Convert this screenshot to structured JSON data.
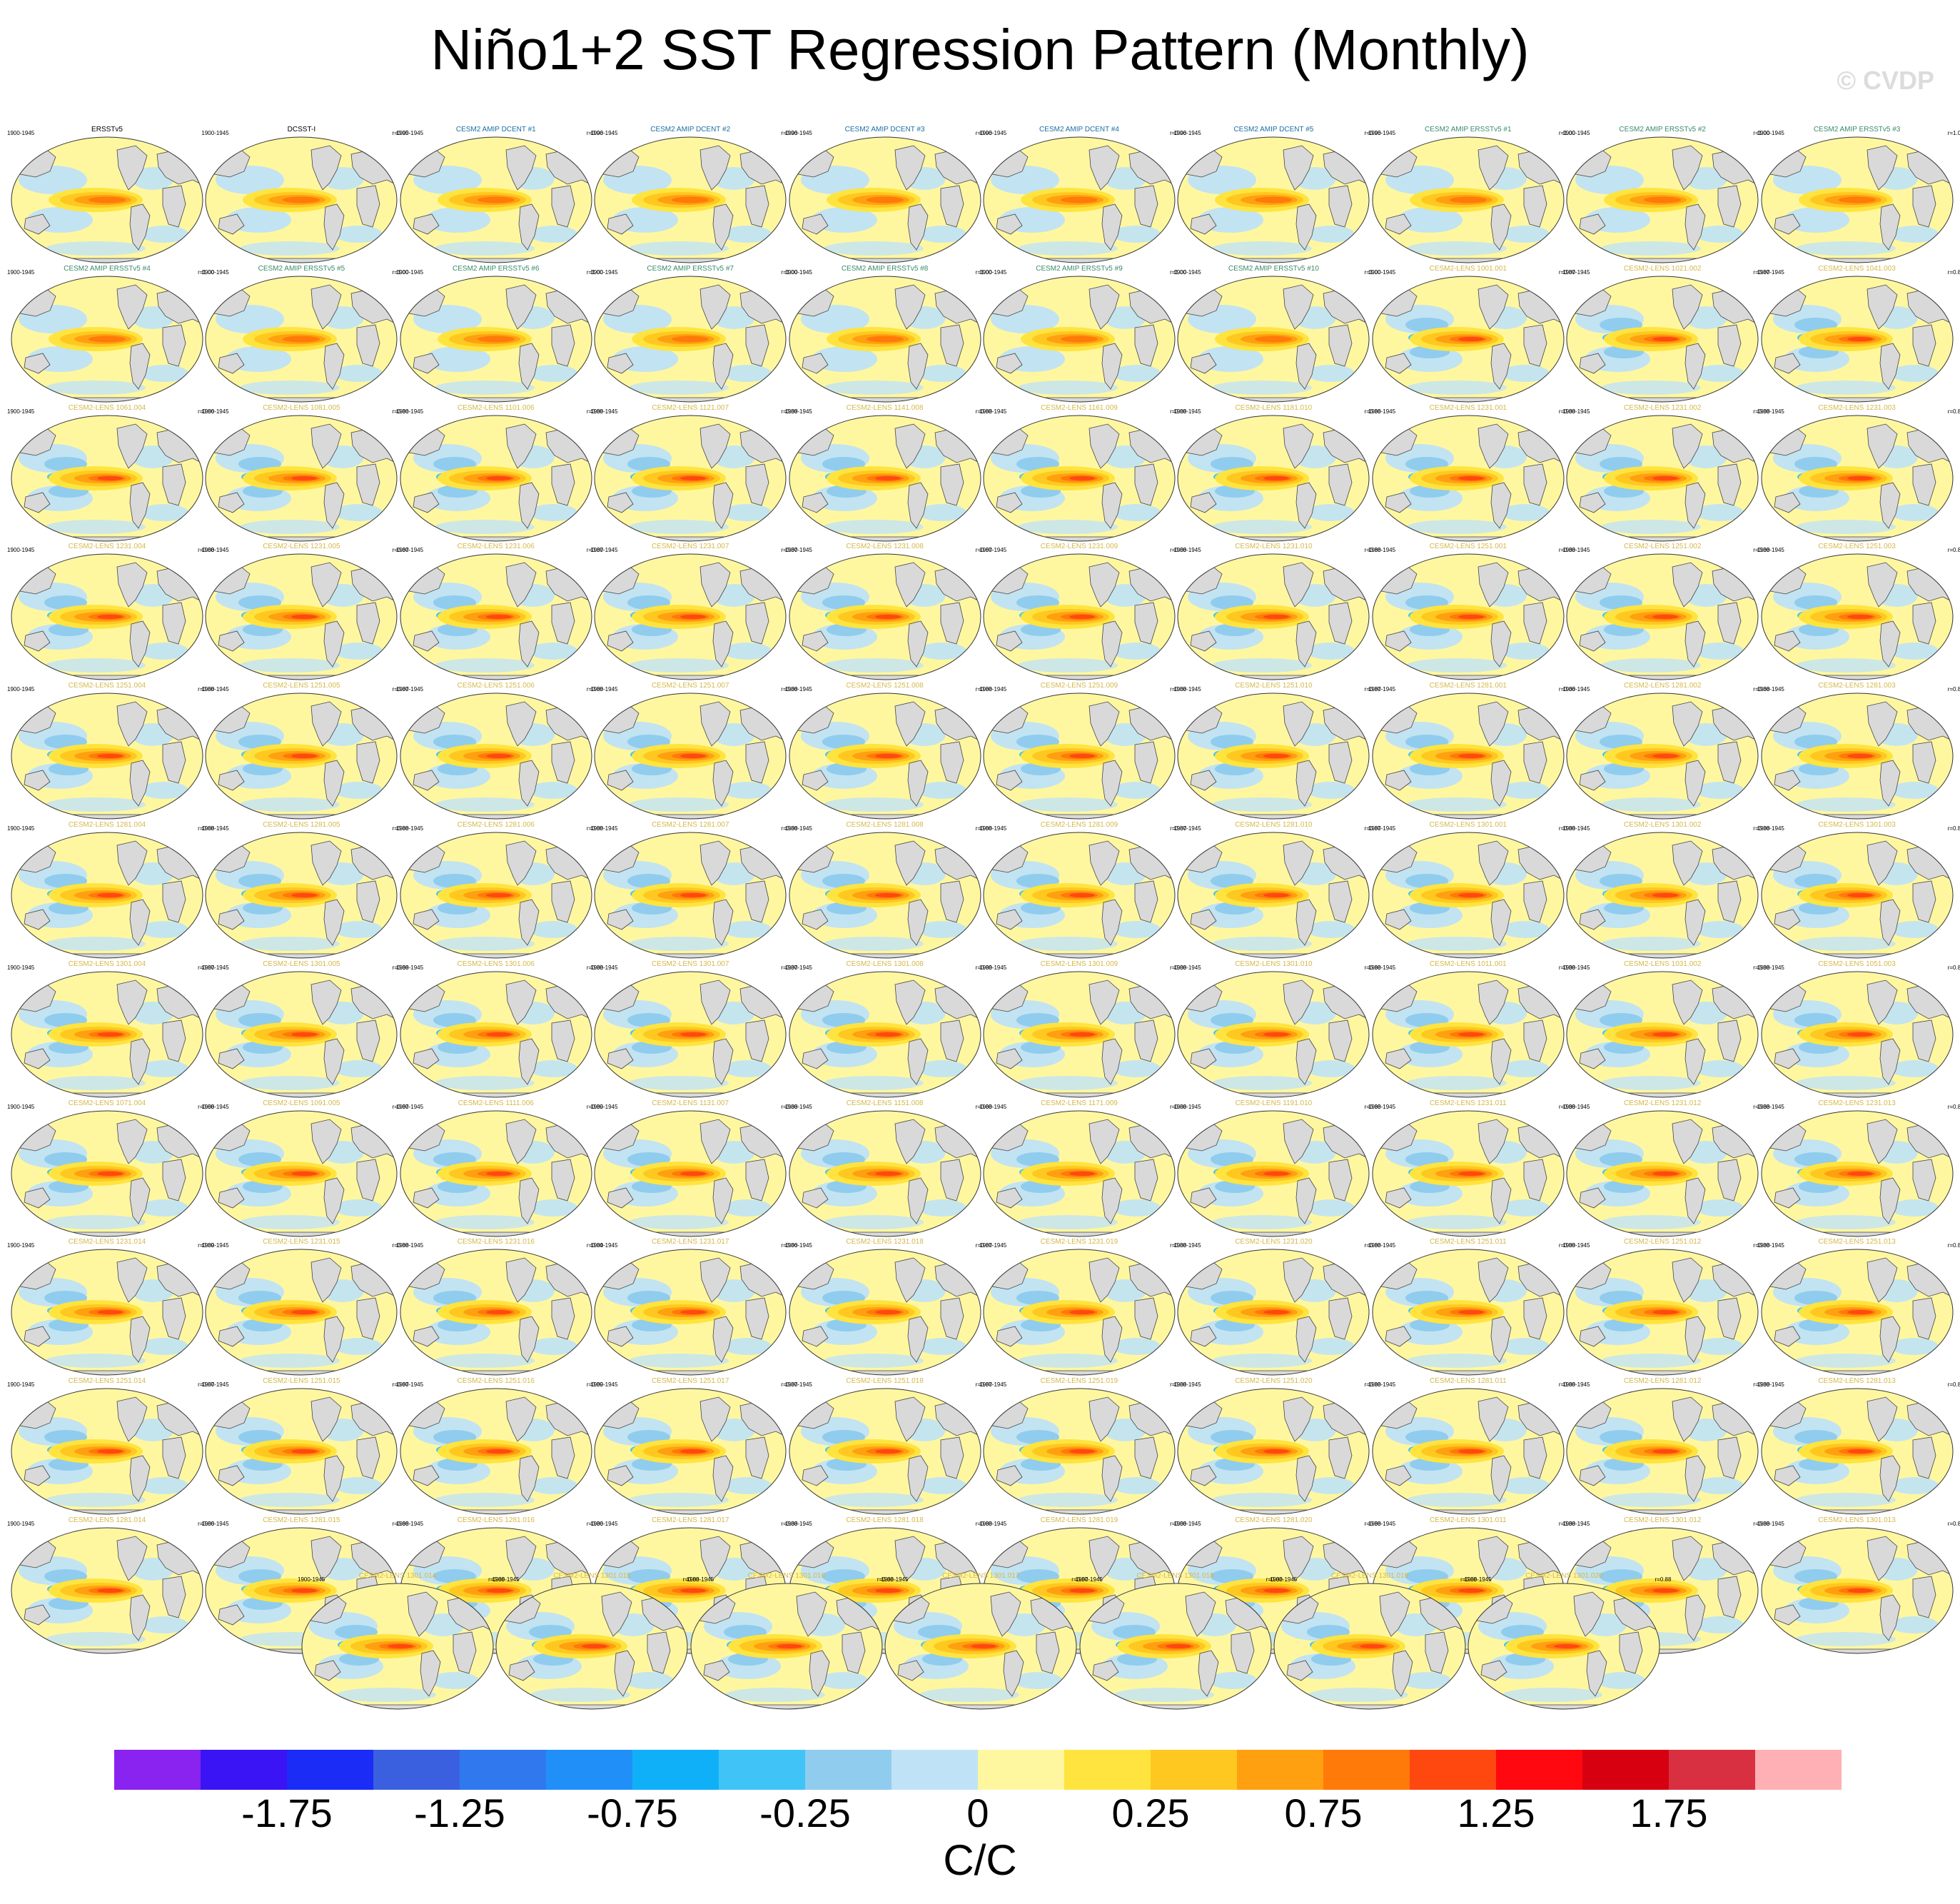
{
  "title": "Niño1+2 SST Regression Pattern (Monthly)",
  "copyright": "© CVDP",
  "chart_data": {
    "type": "heatmap",
    "title": "Niño1+2 SST Regression Pattern (Monthly)",
    "units": "C/C",
    "colorbar": {
      "ticks": [
        "-1.75",
        "-1.25",
        "-0.75",
        "-0.25",
        "0",
        "0.25",
        "0.75",
        "1.25",
        "1.75"
      ],
      "colors": [
        "#8a22f0",
        "#3a14f5",
        "#1a2cf5",
        "#3a60e0",
        "#3078ee",
        "#2090f8",
        "#10b0f8",
        "#40c4f8",
        "#90ccee",
        "#bfe2f6",
        "#fff7a0",
        "#ffe440",
        "#ffc820",
        "#ffa010",
        "#ff7a08",
        "#ff4810",
        "#ff0810",
        "#d60010",
        "#d83040",
        "#ffb0b4"
      ]
    },
    "panels": [
      {
        "label": "ERSSTv5",
        "period": "1900-1945",
        "corr": "",
        "kind": "obs"
      },
      {
        "label": "DCSST-I",
        "period": "1900-1945",
        "corr": "r=0.95",
        "kind": "obs"
      },
      {
        "label": "CESM2 AMIP DCENT #1",
        "period": "1900-1945",
        "corr": "r=0.96",
        "kind": "dcent"
      },
      {
        "label": "CESM2 AMIP DCENT #2",
        "period": "1900-1945",
        "corr": "r=0.96",
        "kind": "dcent"
      },
      {
        "label": "CESM2 AMIP DCENT #3",
        "period": "1900-1945",
        "corr": "r=0.96",
        "kind": "dcent"
      },
      {
        "label": "CESM2 AMIP DCENT #4",
        "period": "1900-1945",
        "corr": "r=0.96",
        "kind": "dcent"
      },
      {
        "label": "CESM2 AMIP DCENT #5",
        "period": "1900-1945",
        "corr": "r=0.96",
        "kind": "dcent"
      },
      {
        "label": "CESM2 AMIP ERSSTv5 #1",
        "period": "1900-1945",
        "corr": "r=1.00",
        "kind": "amip"
      },
      {
        "label": "CESM2 AMIP ERSSTv5 #2",
        "period": "1900-1945",
        "corr": "r=1.00",
        "kind": "amip"
      },
      {
        "label": "CESM2 AMIP ERSSTv5 #3",
        "period": "1900-1945",
        "corr": "r=1.00",
        "kind": "amip"
      },
      {
        "label": "CESM2 AMIP ERSSTv5 #4",
        "period": "1900-1945",
        "corr": "r=1.00",
        "kind": "amip"
      },
      {
        "label": "CESM2 AMIP ERSSTv5 #5",
        "period": "1900-1945",
        "corr": "r=1.00",
        "kind": "amip"
      },
      {
        "label": "CESM2 AMIP ERSSTv5 #6",
        "period": "1900-1945",
        "corr": "r=1.00",
        "kind": "amip"
      },
      {
        "label": "CESM2 AMIP ERSSTv5 #7",
        "period": "1900-1945",
        "corr": "r=1.00",
        "kind": "amip"
      },
      {
        "label": "CESM2 AMIP ERSSTv5 #8",
        "period": "1900-1945",
        "corr": "r=1.00",
        "kind": "amip"
      },
      {
        "label": "CESM2 AMIP ERSSTv5 #9",
        "period": "1900-1945",
        "corr": "r=1.00",
        "kind": "amip"
      },
      {
        "label": "CESM2 AMIP ERSSTv5 #10",
        "period": "1900-1945",
        "corr": "r=1.00",
        "kind": "amip"
      },
      {
        "label": "CESM2-LENS 1001.001",
        "period": "1900-1945",
        "corr": "r=0.87",
        "kind": "lens"
      },
      {
        "label": "CESM2-LENS 1021.002",
        "period": "1900-1945",
        "corr": "r=0.87",
        "kind": "lens"
      },
      {
        "label": "CESM2-LENS 1041.003",
        "period": "1900-1945",
        "corr": "r=0.86",
        "kind": "lens"
      },
      {
        "label": "CESM2-LENS 1061.004",
        "period": "1900-1945",
        "corr": "r=0.86",
        "kind": "lens"
      },
      {
        "label": "CESM2-LENS 1081.005",
        "period": "1900-1945",
        "corr": "r=0.86",
        "kind": "lens"
      },
      {
        "label": "CESM2-LENS 1101.006",
        "period": "1900-1945",
        "corr": "r=0.88",
        "kind": "lens"
      },
      {
        "label": "CESM2-LENS 1121.007",
        "period": "1900-1945",
        "corr": "r=0.88",
        "kind": "lens"
      },
      {
        "label": "CESM2-LENS 1141.008",
        "period": "1900-1945",
        "corr": "r=0.88",
        "kind": "lens"
      },
      {
        "label": "CESM2-LENS 1161.009",
        "period": "1900-1945",
        "corr": "r=0.88",
        "kind": "lens"
      },
      {
        "label": "CESM2-LENS 1181.010",
        "period": "1900-1945",
        "corr": "r=0.88",
        "kind": "lens"
      },
      {
        "label": "CESM2-LENS 1231.001",
        "period": "1900-1945",
        "corr": "r=0.88",
        "kind": "lens"
      },
      {
        "label": "CESM2-LENS 1231.002",
        "period": "1900-1945",
        "corr": "r=0.88",
        "kind": "lens"
      },
      {
        "label": "CESM2-LENS 1231.003",
        "period": "1900-1945",
        "corr": "r=0.88",
        "kind": "lens"
      },
      {
        "label": "CESM2-LENS 1231.004",
        "period": "1900-1945",
        "corr": "r=0.88",
        "kind": "lens"
      },
      {
        "label": "CESM2-LENS 1231.005",
        "period": "1900-1945",
        "corr": "r=0.87",
        "kind": "lens"
      },
      {
        "label": "CESM2-LENS 1231.006",
        "period": "1900-1945",
        "corr": "r=0.87",
        "kind": "lens"
      },
      {
        "label": "CESM2-LENS 1231.007",
        "period": "1900-1945",
        "corr": "r=0.87",
        "kind": "lens"
      },
      {
        "label": "CESM2-LENS 1231.008",
        "period": "1900-1945",
        "corr": "r=0.87",
        "kind": "lens"
      },
      {
        "label": "CESM2-LENS 1231.009",
        "period": "1900-1945",
        "corr": "r=0.88",
        "kind": "lens"
      },
      {
        "label": "CESM2-LENS 1231.010",
        "period": "1900-1945",
        "corr": "r=0.88",
        "kind": "lens"
      },
      {
        "label": "CESM2-LENS 1251.001",
        "period": "1900-1945",
        "corr": "r=0.88",
        "kind": "lens"
      },
      {
        "label": "CESM2-LENS 1251.002",
        "period": "1900-1945",
        "corr": "r=0.88",
        "kind": "lens"
      },
      {
        "label": "CESM2-LENS 1251.003",
        "period": "1900-1945",
        "corr": "r=0.87",
        "kind": "lens"
      },
      {
        "label": "CESM2-LENS 1251.004",
        "period": "1900-1945",
        "corr": "r=0.88",
        "kind": "lens"
      },
      {
        "label": "CESM2-LENS 1251.005",
        "period": "1900-1945",
        "corr": "r=0.87",
        "kind": "lens"
      },
      {
        "label": "CESM2-LENS 1251.006",
        "period": "1900-1945",
        "corr": "r=0.88",
        "kind": "lens"
      },
      {
        "label": "CESM2-LENS 1251.007",
        "period": "1900-1945",
        "corr": "r=0.88",
        "kind": "lens"
      },
      {
        "label": "CESM2-LENS 1251.008",
        "period": "1900-1945",
        "corr": "r=0.88",
        "kind": "lens"
      },
      {
        "label": "CESM2-LENS 1251.009",
        "period": "1900-1945",
        "corr": "r=0.88",
        "kind": "lens"
      },
      {
        "label": "CESM2-LENS 1251.010",
        "period": "1900-1945",
        "corr": "r=0.87",
        "kind": "lens"
      },
      {
        "label": "CESM2-LENS 1281.001",
        "period": "1900-1945",
        "corr": "r=0.88",
        "kind": "lens"
      },
      {
        "label": "CESM2-LENS 1281.002",
        "period": "1900-1945",
        "corr": "r=0.88",
        "kind": "lens"
      },
      {
        "label": "CESM2-LENS 1281.003",
        "period": "1900-1945",
        "corr": "r=0.88",
        "kind": "lens"
      },
      {
        "label": "CESM2-LENS 1281.004",
        "period": "1900-1945",
        "corr": "r=0.88",
        "kind": "lens"
      },
      {
        "label": "CESM2-LENS 1281.005",
        "period": "1900-1945",
        "corr": "r=0.88",
        "kind": "lens"
      },
      {
        "label": "CESM2-LENS 1281.006",
        "period": "1900-1945",
        "corr": "r=0.88",
        "kind": "lens"
      },
      {
        "label": "CESM2-LENS 1281.007",
        "period": "1900-1945",
        "corr": "r=0.88",
        "kind": "lens"
      },
      {
        "label": "CESM2-LENS 1281.008",
        "period": "1900-1945",
        "corr": "r=0.88",
        "kind": "lens"
      },
      {
        "label": "CESM2-LENS 1281.009",
        "period": "1900-1945",
        "corr": "r=0.87",
        "kind": "lens"
      },
      {
        "label": "CESM2-LENS 1281.010",
        "period": "1900-1945",
        "corr": "r=0.87",
        "kind": "lens"
      },
      {
        "label": "CESM2-LENS 1301.001",
        "period": "1900-1945",
        "corr": "r=0.88",
        "kind": "lens"
      },
      {
        "label": "CESM2-LENS 1301.002",
        "period": "1900-1945",
        "corr": "r=0.88",
        "kind": "lens"
      },
      {
        "label": "CESM2-LENS 1301.003",
        "period": "1900-1945",
        "corr": "r=0.86",
        "kind": "lens"
      },
      {
        "label": "CESM2-LENS 1301.004",
        "period": "1900-1945",
        "corr": "r=0.87",
        "kind": "lens"
      },
      {
        "label": "CESM2-LENS 1301.005",
        "period": "1900-1945",
        "corr": "r=0.88",
        "kind": "lens"
      },
      {
        "label": "CESM2-LENS 1301.006",
        "period": "1900-1945",
        "corr": "r=0.88",
        "kind": "lens"
      },
      {
        "label": "CESM2-LENS 1301.007",
        "period": "1900-1945",
        "corr": "r=0.87",
        "kind": "lens"
      },
      {
        "label": "CESM2-LENS 1301.008",
        "period": "1900-1945",
        "corr": "r=0.88",
        "kind": "lens"
      },
      {
        "label": "CESM2-LENS 1301.009",
        "period": "1900-1945",
        "corr": "r=0.88",
        "kind": "lens"
      },
      {
        "label": "CESM2-LENS 1301.010",
        "period": "1900-1945",
        "corr": "r=0.88",
        "kind": "lens"
      },
      {
        "label": "CESM2-LENS 1011.001",
        "period": "1900-1945",
        "corr": "r=0.88",
        "kind": "lens"
      },
      {
        "label": "CESM2-LENS 1031.002",
        "period": "1900-1945",
        "corr": "r=0.88",
        "kind": "lens"
      },
      {
        "label": "CESM2-LENS 1051.003",
        "period": "1900-1945",
        "corr": "r=0.87",
        "kind": "lens"
      },
      {
        "label": "CESM2-LENS 1071.004",
        "period": "1900-1945",
        "corr": "r=0.88",
        "kind": "lens"
      },
      {
        "label": "CESM2-LENS 1091.005",
        "period": "1900-1945",
        "corr": "r=0.87",
        "kind": "lens"
      },
      {
        "label": "CESM2-LENS 1111.006",
        "period": "1900-1945",
        "corr": "r=0.89",
        "kind": "lens"
      },
      {
        "label": "CESM2-LENS 1131.007",
        "period": "1900-1945",
        "corr": "r=0.88",
        "kind": "lens"
      },
      {
        "label": "CESM2-LENS 1151.008",
        "period": "1900-1945",
        "corr": "r=0.88",
        "kind": "lens"
      },
      {
        "label": "CESM2-LENS 1171.009",
        "period": "1900-1945",
        "corr": "r=0.88",
        "kind": "lens"
      },
      {
        "label": "CESM2-LENS 1191.010",
        "period": "1900-1945",
        "corr": "r=0.88",
        "kind": "lens"
      },
      {
        "label": "CESM2-LENS 1231.011",
        "period": "1900-1945",
        "corr": "r=0.88",
        "kind": "lens"
      },
      {
        "label": "CESM2-LENS 1231.012",
        "period": "1900-1945",
        "corr": "r=0.88",
        "kind": "lens"
      },
      {
        "label": "CESM2-LENS 1231.013",
        "period": "1900-1945",
        "corr": "r=0.88",
        "kind": "lens"
      },
      {
        "label": "CESM2-LENS 1231.014",
        "period": "1900-1945",
        "corr": "r=0.89",
        "kind": "lens"
      },
      {
        "label": "CESM2-LENS 1231.015",
        "period": "1900-1945",
        "corr": "r=0.88",
        "kind": "lens"
      },
      {
        "label": "CESM2-LENS 1231.016",
        "period": "1900-1945",
        "corr": "r=0.84",
        "kind": "lens"
      },
      {
        "label": "CESM2-LENS 1231.017",
        "period": "1900-1945",
        "corr": "r=0.86",
        "kind": "lens"
      },
      {
        "label": "CESM2-LENS 1231.018",
        "period": "1900-1945",
        "corr": "r=0.87",
        "kind": "lens"
      },
      {
        "label": "CESM2-LENS 1231.019",
        "period": "1900-1945",
        "corr": "r=0.88",
        "kind": "lens"
      },
      {
        "label": "CESM2-LENS 1231.020",
        "period": "1900-1945",
        "corr": "r=0.88",
        "kind": "lens"
      },
      {
        "label": "CESM2-LENS 1251.011",
        "period": "1900-1945",
        "corr": "r=0.88",
        "kind": "lens"
      },
      {
        "label": "CESM2-LENS 1251.012",
        "period": "1900-1945",
        "corr": "r=0.88",
        "kind": "lens"
      },
      {
        "label": "CESM2-LENS 1251.013",
        "period": "1900-1945",
        "corr": "r=0.89",
        "kind": "lens"
      },
      {
        "label": "CESM2-LENS 1251.014",
        "period": "1900-1945",
        "corr": "r=0.87",
        "kind": "lens"
      },
      {
        "label": "CESM2-LENS 1251.015",
        "period": "1900-1945",
        "corr": "r=0.87",
        "kind": "lens"
      },
      {
        "label": "CESM2-LENS 1251.016",
        "period": "1900-1945",
        "corr": "r=0.89",
        "kind": "lens"
      },
      {
        "label": "CESM2-LENS 1251.017",
        "period": "1900-1945",
        "corr": "r=0.87",
        "kind": "lens"
      },
      {
        "label": "CESM2-LENS 1251.018",
        "period": "1900-1945",
        "corr": "r=0.87",
        "kind": "lens"
      },
      {
        "label": "CESM2-LENS 1251.019",
        "period": "1900-1945",
        "corr": "r=0.88",
        "kind": "lens"
      },
      {
        "label": "CESM2-LENS 1251.020",
        "period": "1900-1945",
        "corr": "r=0.88",
        "kind": "lens"
      },
      {
        "label": "CESM2-LENS 1281.011",
        "period": "1900-1945",
        "corr": "r=0.88",
        "kind": "lens"
      },
      {
        "label": "CESM2-LENS 1281.012",
        "period": "1900-1945",
        "corr": "r=0.88",
        "kind": "lens"
      },
      {
        "label": "CESM2-LENS 1281.013",
        "period": "1900-1945",
        "corr": "r=0.87",
        "kind": "lens"
      },
      {
        "label": "CESM2-LENS 1281.014",
        "period": "1900-1945",
        "corr": "r=0.86",
        "kind": "lens"
      },
      {
        "label": "CESM2-LENS 1281.015",
        "period": "1900-1945",
        "corr": "r=0.88",
        "kind": "lens"
      },
      {
        "label": "CESM2-LENS 1281.016",
        "period": "1900-1945",
        "corr": "r=0.86",
        "kind": "lens"
      },
      {
        "label": "CESM2-LENS 1281.017",
        "period": "1900-1945",
        "corr": "r=0.88",
        "kind": "lens"
      },
      {
        "label": "CESM2-LENS 1281.018",
        "period": "1900-1945",
        "corr": "r=0.88",
        "kind": "lens"
      },
      {
        "label": "CESM2-LENS 1281.019",
        "period": "1900-1945",
        "corr": "r=0.88",
        "kind": "lens"
      },
      {
        "label": "CESM2-LENS 1281.020",
        "period": "1900-1945",
        "corr": "r=0.88",
        "kind": "lens"
      },
      {
        "label": "CESM2-LENS 1301.011",
        "period": "1900-1945",
        "corr": "r=0.88",
        "kind": "lens"
      },
      {
        "label": "CESM2-LENS 1301.012",
        "period": "1900-1945",
        "corr": "r=0.88",
        "kind": "lens"
      },
      {
        "label": "CESM2-LENS 1301.013",
        "period": "1900-1945",
        "corr": "r=0.87",
        "kind": "lens"
      },
      {
        "label": "CESM2-LENS 1301.014",
        "period": "1900-1945",
        "corr": "r=0.88",
        "kind": "lens"
      },
      {
        "label": "CESM2-LENS 1301.015",
        "period": "1900-1945",
        "corr": "r=0.88",
        "kind": "lens"
      },
      {
        "label": "CESM2-LENS 1301.016",
        "period": "1900-1945",
        "corr": "r=0.88",
        "kind": "lens"
      },
      {
        "label": "CESM2-LENS 1301.017",
        "period": "1900-1945",
        "corr": "r=0.87",
        "kind": "lens"
      },
      {
        "label": "CESM2-LENS 1301.018",
        "period": "1900-1945",
        "corr": "r=0.88",
        "kind": "lens"
      },
      {
        "label": "CESM2-LENS 1301.019",
        "period": "1900-1945",
        "corr": "r=0.88",
        "kind": "lens"
      },
      {
        "label": "CESM2-LENS 1301.020",
        "period": "1900-1945",
        "corr": "r=0.88",
        "kind": "lens"
      }
    ]
  },
  "style": {
    "obs_title_color": "#000000",
    "dcent_title_color": "#1a6fa0",
    "amip_title_color": "#3a8a6a",
    "lens_title_color": "#d4b84a",
    "land_color": "#d9d9d9",
    "ocean_base_color": "#fff7a0"
  }
}
